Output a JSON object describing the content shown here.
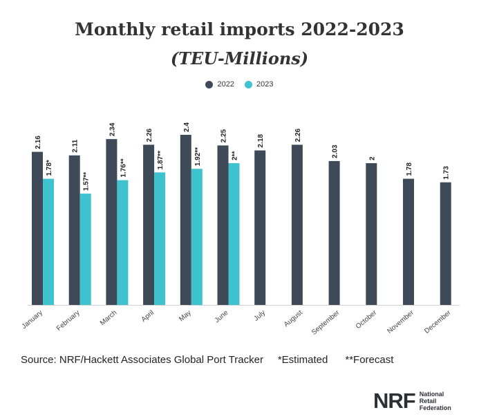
{
  "header": {
    "title": "Monthly retail imports 2022-2023",
    "subtitle": "(TEU-Millions)"
  },
  "legend": [
    {
      "label": "2022",
      "color": "#3f4a59"
    },
    {
      "label": "2023",
      "color": "#3ec2cd"
    }
  ],
  "footer": {
    "source": "Source: NRF/Hackett Associates Global Port Tracker",
    "estimated_note": "*Estimated",
    "forecast_note": "**Forecast"
  },
  "logo": {
    "mark": "NRF",
    "line1": "National",
    "line2": "Retail",
    "line3": "Federation"
  },
  "chart_data": {
    "type": "bar",
    "title": "Monthly retail imports 2022-2023",
    "subtitle": "(TEU-Millions)",
    "categories": [
      "January",
      "February",
      "March",
      "April",
      "May",
      "June",
      "July",
      "August",
      "September",
      "October",
      "November",
      "December"
    ],
    "series": [
      {
        "name": "2022",
        "color": "#3f4a59",
        "values": [
          2.16,
          2.11,
          2.34,
          2.26,
          2.4,
          2.25,
          2.18,
          2.26,
          2.03,
          2,
          1.78,
          1.73
        ],
        "labels": [
          "2.16",
          "2.11",
          "2.34",
          "2.26",
          "2.4",
          "2.25",
          "2.18",
          "2.26",
          "2.03",
          "2",
          "1.78",
          "1.73"
        ]
      },
      {
        "name": "2023",
        "color": "#3ec2cd",
        "values": [
          1.78,
          1.57,
          1.76,
          1.87,
          1.92,
          2,
          null,
          null,
          null,
          null,
          null,
          null
        ],
        "labels": [
          "1.78*",
          "1.57**",
          "1.76**",
          "1.87**",
          "1.92**",
          "2**",
          null,
          null,
          null,
          null,
          null,
          null
        ]
      }
    ],
    "ylim": [
      0,
      2.4
    ],
    "grid": false,
    "legend_position": "top-center"
  }
}
